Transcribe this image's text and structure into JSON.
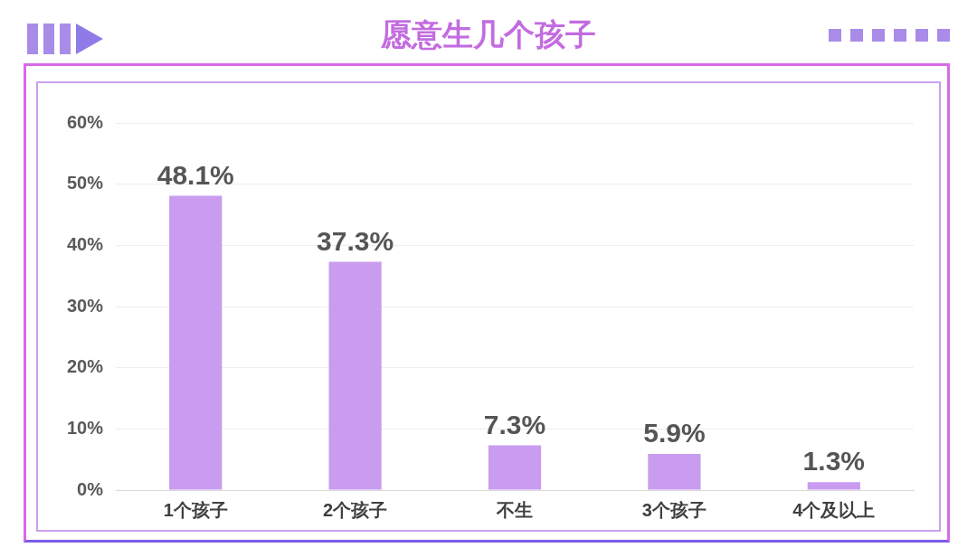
{
  "chart_data": {
    "type": "bar",
    "title": "愿意生几个孩子",
    "categories": [
      "1个孩子",
      "2个孩子",
      "不生",
      "3个孩子",
      "4个及以上"
    ],
    "values": [
      48.1,
      37.3,
      7.3,
      5.9,
      1.3
    ],
    "value_labels": [
      "48.1%",
      "37.3%",
      "7.3%",
      "5.9%",
      "1.3%"
    ],
    "color": "#c99cf0",
    "ylim": [
      0,
      60
    ],
    "yticks": [
      {
        "value": 0,
        "label": "0%"
      },
      {
        "value": 10,
        "label": "10%"
      },
      {
        "value": 20,
        "label": "20%"
      },
      {
        "value": 30,
        "label": "30%"
      },
      {
        "value": 40,
        "label": "40%"
      },
      {
        "value": 50,
        "label": "50%"
      },
      {
        "value": 60,
        "label": "60%"
      }
    ],
    "grid": "y"
  }
}
